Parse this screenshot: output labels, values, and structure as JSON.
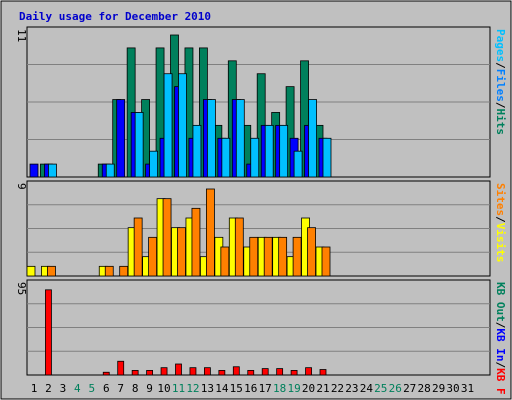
{
  "chart_data": {
    "type": "bar",
    "title": "Daily usage for December 2010",
    "days": [
      "1",
      "2",
      "3",
      "4",
      "5",
      "6",
      "7",
      "8",
      "9",
      "10",
      "11",
      "12",
      "13",
      "14",
      "15",
      "16",
      "17",
      "18",
      "19",
      "20",
      "21",
      "22",
      "23",
      "24",
      "25",
      "26",
      "27",
      "28",
      "29",
      "30",
      "31"
    ],
    "weekend_days": [
      "4",
      "5",
      "11",
      "12",
      "18",
      "19",
      "25",
      "26"
    ],
    "colors": {
      "background": "#c0c0c0",
      "frame": "#ffffff",
      "title": "#0000cc",
      "weekday_label": "#000000",
      "weekend_label": "#00805c",
      "hits": "#00805c",
      "files": "#0080ff",
      "pages": "#00c0ff",
      "visits": "#ffff00",
      "sites": "#ff8000",
      "kb_f": "#ff0000",
      "kb_in": "#0000ff",
      "kb_out": "#00805c"
    },
    "panels": [
      {
        "max_label": "11",
        "ymax": 11,
        "legend": [
          {
            "text": "Hits",
            "color": "#00805c"
          },
          {
            "text": "Files",
            "color": "#0080ff"
          },
          {
            "text": "Pages",
            "color": "#00c0ff"
          }
        ],
        "series": [
          {
            "name": "Hits",
            "color": "#00805c",
            "values": [
              0,
              1,
              0,
              0,
              0,
              1,
              6,
              10,
              6,
              10,
              11,
              10,
              10,
              4,
              9,
              4,
              8,
              5,
              7,
              9,
              4,
              0,
              0,
              0,
              0,
              0,
              0,
              0,
              0,
              0,
              0
            ]
          },
          {
            "name": "Files",
            "color": "#0000ff",
            "values": [
              1,
              1,
              0,
              0,
              0,
              1,
              6,
              5,
              1,
              3,
              7,
              3,
              6,
              3,
              6,
              1,
              4,
              4,
              3,
              4,
              3,
              0,
              0,
              0,
              0,
              0,
              0,
              0,
              0,
              0,
              0
            ]
          },
          {
            "name": "Pages",
            "color": "#00c0ff",
            "values": [
              0,
              1,
              0,
              0,
              0,
              1,
              0,
              5,
              2,
              8,
              8,
              4,
              6,
              3,
              6,
              3,
              4,
              4,
              2,
              6,
              3,
              0,
              0,
              0,
              0,
              0,
              0,
              0,
              0,
              0,
              0
            ]
          }
        ]
      },
      {
        "max_label": "9",
        "ymax": 9,
        "legend": [
          {
            "text": "Visits",
            "color": "#ffff00"
          },
          {
            "text": "Sites",
            "color": "#ff8000"
          }
        ],
        "series": [
          {
            "name": "Visits",
            "color": "#ffff00",
            "values": [
              1,
              1,
              0,
              0,
              0,
              1,
              0,
              5,
              2,
              8,
              5,
              6,
              2,
              4,
              6,
              3,
              4,
              4,
              2,
              6,
              3,
              0,
              0,
              0,
              0,
              0,
              0,
              0,
              0,
              0,
              0
            ]
          },
          {
            "name": "Sites",
            "color": "#ff8000",
            "values": [
              0,
              1,
              0,
              0,
              0,
              1,
              1,
              6,
              4,
              8,
              5,
              7,
              9,
              3,
              6,
              4,
              4,
              4,
              4,
              5,
              3,
              0,
              0,
              0,
              0,
              0,
              0,
              0,
              0,
              0,
              0
            ]
          }
        ]
      },
      {
        "max_label": "95",
        "ymax": 95,
        "legend": [
          {
            "text": "KB F",
            "color": "#ff0000"
          },
          {
            "text": "KB In",
            "color": "#0000ff"
          },
          {
            "text": "KB Out",
            "color": "#00805c"
          }
        ],
        "series": [
          {
            "name": "KB F",
            "color": "#ff0000",
            "values": [
              0,
              93,
              0,
              0,
              0,
              3,
              15,
              5,
              5,
              8,
              12,
              8,
              8,
              5,
              9,
              5,
              7,
              7,
              5,
              8,
              6,
              0,
              0,
              0,
              0,
              0,
              0,
              0,
              0,
              0,
              0
            ]
          }
        ]
      }
    ]
  }
}
